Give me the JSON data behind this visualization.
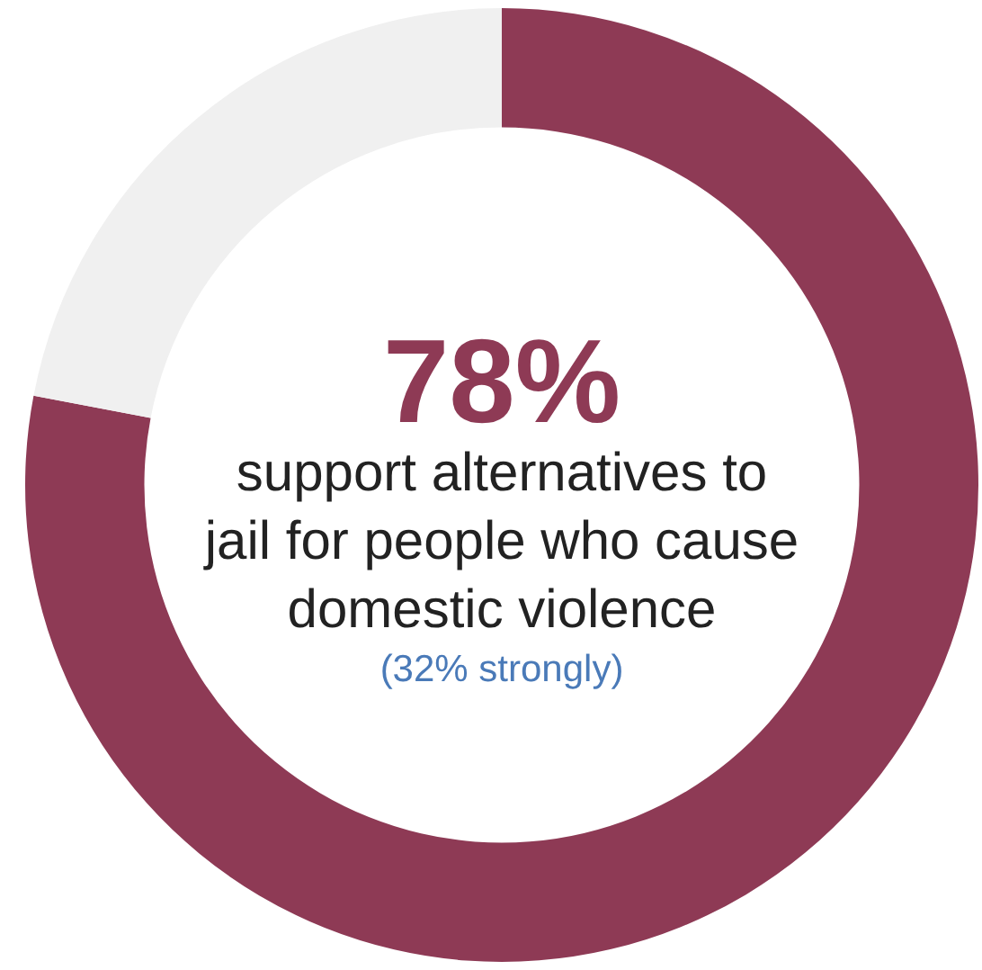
{
  "chart_data": {
    "type": "donut",
    "categories": [
      null,
      null
    ],
    "values": [
      78,
      22
    ],
    "colors": [
      "#8e3a55",
      "#f0f0f0"
    ],
    "value_labels": [
      "78%",
      null
    ],
    "annotations": [
      "support alternatives to jail for people who cause domestic violence",
      "(32% strongly)"
    ],
    "legend": false
  }
}
